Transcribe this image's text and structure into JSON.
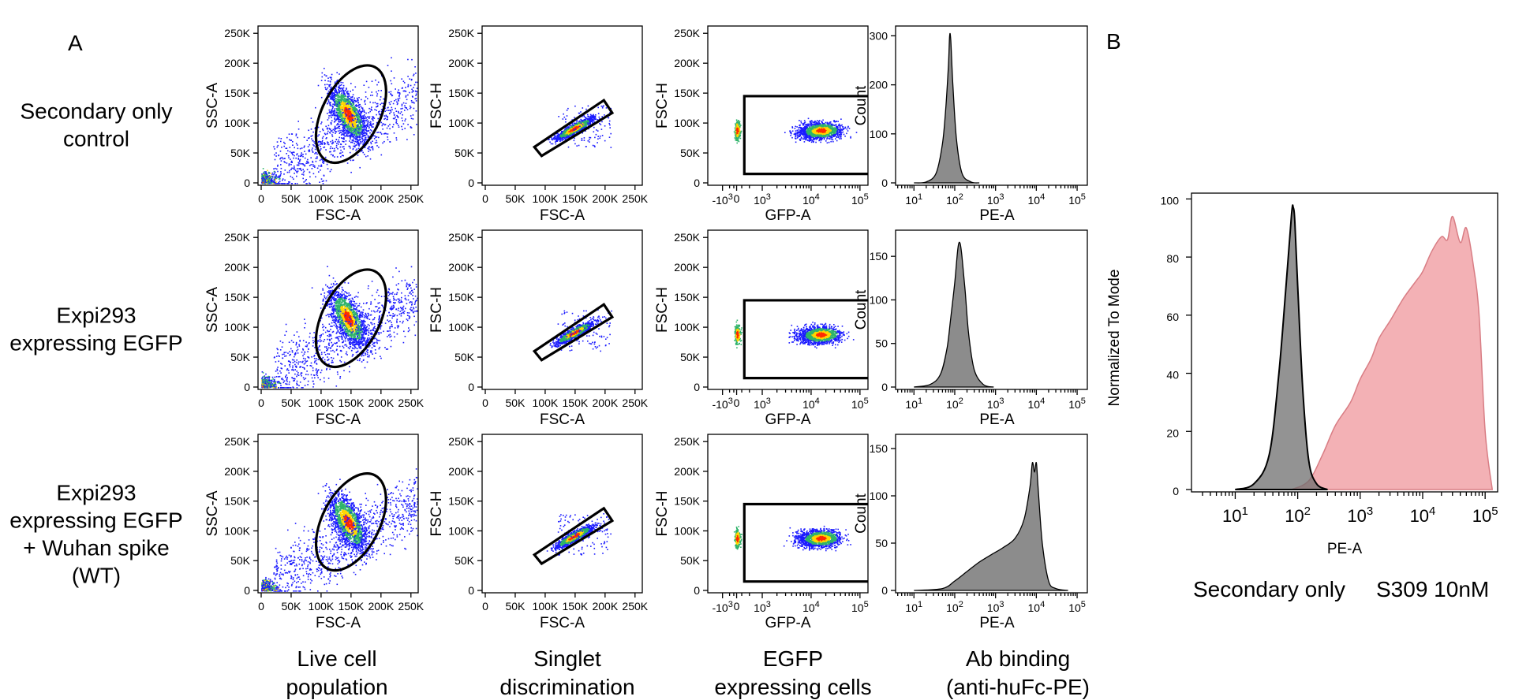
{
  "panel_labels": {
    "a": "A",
    "b": "B"
  },
  "rows": [
    {
      "lines": [
        "Secondary only",
        "control"
      ]
    },
    {
      "lines": [
        "Expi293",
        "expressing EGFP"
      ]
    },
    {
      "lines": [
        "Expi293",
        "expressing EGFP",
        "+ Wuhan spike",
        "(WT)"
      ]
    }
  ],
  "columns": [
    {
      "lines": [
        "Live cell",
        "population"
      ]
    },
    {
      "lines": [
        "Singlet",
        "discrimination"
      ]
    },
    {
      "lines": [
        "EGFP",
        "expressing cells"
      ]
    },
    {
      "lines": [
        "Ab binding",
        "(anti-huFc-PE)"
      ]
    }
  ],
  "colors": {
    "density_low": "#1a1aff",
    "density_mid": "#2fb36a",
    "density_high": "#ffd600",
    "density_max": "#ff2a00",
    "hist_fill": "#8c8c8c",
    "s309_fill": "#f2a9ad",
    "s309_line": "#d87d84",
    "s309_text": "#cc0000"
  },
  "chart_data": [
    {
      "type": "scatter",
      "panel": "A",
      "column": "live-cell",
      "xlabel": "FSC-A",
      "ylabel": "SSC-A",
      "xticks": [
        "0",
        "50K",
        "100K",
        "150K",
        "200K",
        "250K"
      ],
      "yticks": [
        "0",
        "50K",
        "100K",
        "150K",
        "200K",
        "250K"
      ],
      "xlim": [
        0,
        262144
      ],
      "ylim": [
        0,
        262144
      ],
      "gate": {
        "shape": "ellipse",
        "center": [
          150000,
          115000
        ],
        "semi_axes": [
          48000,
          88000
        ],
        "rotation_deg": 27
      },
      "population_center": [
        150000,
        115000
      ]
    },
    {
      "type": "scatter",
      "panel": "A",
      "column": "singlet",
      "xlabel": "FSC-A",
      "ylabel": "FSC-H",
      "xticks": [
        "0",
        "50K",
        "100K",
        "150K",
        "200K",
        "250K"
      ],
      "yticks": [
        "0",
        "50K",
        "100K",
        "150K",
        "200K",
        "250K"
      ],
      "xlim": [
        0,
        262144
      ],
      "ylim": [
        0,
        262144
      ],
      "gate": {
        "shape": "polygon",
        "points": [
          [
            82000,
            60000
          ],
          [
            94000,
            45000
          ],
          [
            212000,
            117000
          ],
          [
            198000,
            138000
          ]
        ]
      },
      "population_center": [
        150000,
        90000
      ]
    },
    {
      "type": "scatter",
      "panel": "A",
      "column": "egfp",
      "xlabel": "GFP-A",
      "ylabel": "FSC-H",
      "xscale": "biexponential",
      "xticks": [
        "-10³",
        "0",
        "10³",
        "10⁴",
        "10⁵"
      ],
      "yticks": [
        "0",
        "50K",
        "100K",
        "150K",
        "200K",
        "250K"
      ],
      "ylim": [
        0,
        262144
      ],
      "gate": {
        "shape": "rectangle",
        "x_from": 300,
        "x_to": 262144,
        "y_from": 15000,
        "y_to": 145000
      },
      "population_center": [
        20000,
        88000
      ]
    },
    {
      "type": "area",
      "panel": "A",
      "column": "ab-binding",
      "row": 1,
      "xlabel": "PE-A",
      "ylabel": "Count",
      "xscale": "log",
      "xticks": [
        "10¹",
        "10²",
        "10³",
        "10⁴",
        "10⁵"
      ],
      "yticks": [
        "0",
        "100",
        "200",
        "300"
      ],
      "ylim": [
        0,
        320
      ],
      "series": [
        {
          "x": [
            10,
            20,
            35,
            50,
            60,
            70,
            75,
            80,
            90,
            110,
            150,
            250,
            400
          ],
          "y": [
            0,
            2,
            20,
            80,
            150,
            240,
            300,
            290,
            200,
            90,
            20,
            2,
            0
          ]
        }
      ]
    },
    {
      "type": "area",
      "panel": "A",
      "column": "ab-binding",
      "row": 2,
      "xlabel": "PE-A",
      "ylabel": "Count",
      "xscale": "log",
      "xticks": [
        "10¹",
        "10²",
        "10³",
        "10⁴",
        "10⁵"
      ],
      "yticks": [
        "0",
        "50",
        "100",
        "150"
      ],
      "ylim": [
        0,
        180
      ],
      "series": [
        {
          "x": [
            10,
            25,
            45,
            65,
            80,
            100,
            120,
            135,
            150,
            180,
            220,
            300,
            500,
            900
          ],
          "y": [
            0,
            3,
            15,
            45,
            80,
            120,
            160,
            165,
            150,
            110,
            60,
            20,
            3,
            0
          ]
        }
      ]
    },
    {
      "type": "area",
      "panel": "A",
      "column": "ab-binding",
      "row": 3,
      "xlabel": "PE-A",
      "ylabel": "Count",
      "xscale": "log",
      "xticks": [
        "10¹",
        "10²",
        "10³",
        "10⁴",
        "10⁵"
      ],
      "yticks": [
        "0",
        "50",
        "100",
        "150"
      ],
      "ylim": [
        0,
        165
      ],
      "series": [
        {
          "x": [
            10,
            50,
            100,
            200,
            400,
            800,
            1500,
            3000,
            5000,
            7000,
            8000,
            9000,
            10000,
            11000,
            14000,
            20000,
            30000,
            60000
          ],
          "y": [
            0,
            2,
            10,
            20,
            30,
            38,
            45,
            55,
            75,
            110,
            135,
            125,
            135,
            110,
            50,
            10,
            2,
            0
          ]
        }
      ]
    },
    {
      "type": "area",
      "panel": "B",
      "xlabel": "PE-A",
      "ylabel": "Normalized To Mode",
      "xscale": "log",
      "xticks": [
        "10¹",
        "10²",
        "10³",
        "10⁴",
        "10⁵"
      ],
      "yticks": [
        "0",
        "20",
        "40",
        "60",
        "80",
        "100"
      ],
      "ylim": [
        0,
        102
      ],
      "series": [
        {
          "name": "Secondary only",
          "x": [
            10,
            20,
            35,
            50,
            65,
            80,
            85,
            90,
            100,
            120,
            150,
            200,
            300
          ],
          "y": [
            0,
            2,
            12,
            40,
            70,
            95,
            97,
            92,
            70,
            35,
            10,
            2,
            0
          ]
        },
        {
          "name": "S309 10nM",
          "x": [
            80,
            150,
            250,
            400,
            700,
            1000,
            1500,
            2000,
            3000,
            5000,
            8000,
            10000,
            14000,
            20000,
            25000,
            30000,
            40000,
            50000,
            65000,
            80000,
            100000,
            130000
          ],
          "y": [
            0,
            3,
            12,
            22,
            30,
            38,
            45,
            52,
            58,
            66,
            72,
            75,
            82,
            87,
            86,
            94,
            85,
            90,
            77,
            60,
            20,
            0
          ]
        }
      ]
    }
  ]
}
